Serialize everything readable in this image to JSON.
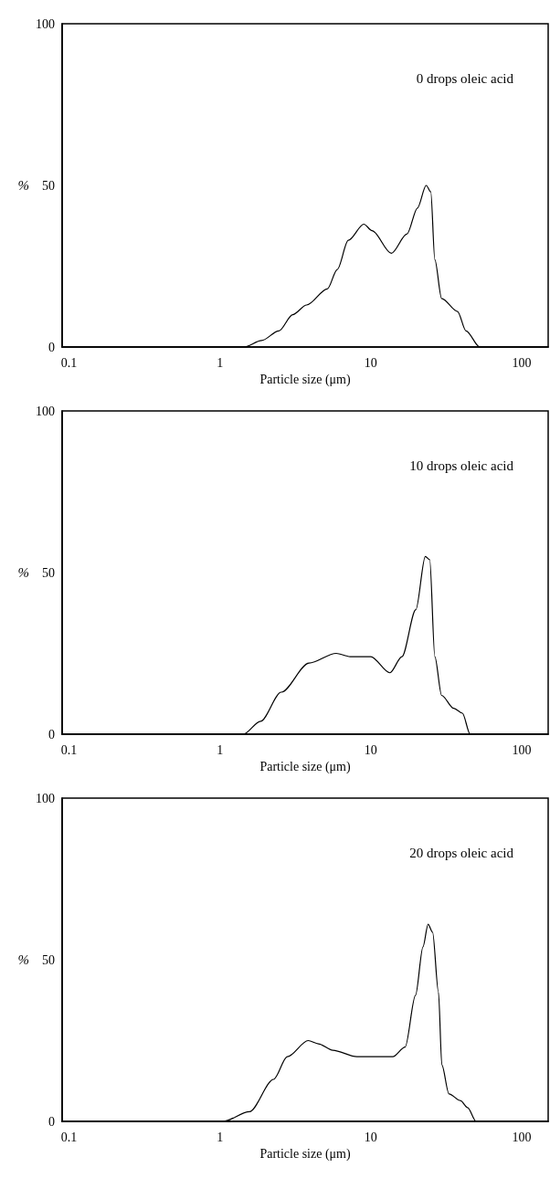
{
  "chart_data": [
    {
      "type": "line",
      "annotations": [
        "0 drops oleic acid"
      ],
      "xlabel": "Particle size (μm)",
      "ylabel": "%",
      "log": "x",
      "xlim": [
        0.09,
        150
      ],
      "xticks": [
        0.1,
        1,
        10,
        100
      ],
      "ylim": [
        0,
        100
      ],
      "yticks": [
        0,
        50,
        100
      ],
      "series": [
        {
          "color": "#000000",
          "x": [
            0.09,
            1.45,
            1.89,
            2.46,
            3.04,
            3.76,
            5.16,
            6.0,
            7.1,
            9.0,
            10.2,
            13.7,
            17.4,
            20.4,
            23.3,
            25,
            26.6,
            29.5,
            37.6,
            42.8,
            52.8,
            150
          ],
          "values": [
            0,
            0,
            2,
            5,
            10,
            13,
            18,
            24,
            33,
            38,
            36,
            29,
            35,
            43,
            50,
            48,
            27,
            15,
            11,
            5,
            0,
            0
          ]
        }
      ]
    },
    {
      "type": "line",
      "annotations": [
        "10 drops oleic acid"
      ],
      "xlabel": "Particle size (μm)",
      "ylabel": "%",
      "log": "x",
      "xlim": [
        0.09,
        150
      ],
      "xticks": [
        0.1,
        1,
        10,
        100
      ],
      "ylim": [
        0,
        100
      ],
      "yticks": [
        0,
        50,
        100
      ],
      "series": [
        {
          "color": "#000000",
          "x": [
            0.09,
            1.43,
            1.86,
            2.55,
            3.9,
            5.9,
            7.3,
            10.0,
            13.4,
            16.1,
            19.9,
            23.0,
            24.6,
            26.6,
            29.5,
            35.5,
            40.5,
            45.6,
            150
          ],
          "values": [
            0,
            0,
            4,
            13,
            22,
            25,
            24,
            24,
            19,
            24,
            38.5,
            55,
            54,
            24,
            12,
            8,
            6.5,
            0,
            0
          ]
        }
      ]
    },
    {
      "type": "line",
      "annotations": [
        "20 drops oleic acid"
      ],
      "xlabel": "Particle size (μm)",
      "ylabel": "%",
      "log": "x",
      "xlim": [
        0.09,
        150
      ],
      "xticks": [
        0.1,
        1,
        10,
        100
      ],
      "ylim": [
        0,
        100
      ],
      "yticks": [
        0,
        50,
        100
      ],
      "series": [
        {
          "color": "#000000",
          "x": [
            0.09,
            1.05,
            1.57,
            2.27,
            2.8,
            3.85,
            4.5,
            5.6,
            8.1,
            10.5,
            14.0,
            16.9,
            19.8,
            22.2,
            24.0,
            25.7,
            28.1,
            29.6,
            33.0,
            39.4,
            43.8,
            50,
            150
          ],
          "values": [
            0,
            0,
            3,
            13,
            20,
            25,
            24,
            22,
            20,
            20,
            20,
            23,
            39,
            54,
            61,
            58.5,
            40,
            17.5,
            8.5,
            6.4,
            4.3,
            0,
            0
          ]
        }
      ]
    }
  ]
}
